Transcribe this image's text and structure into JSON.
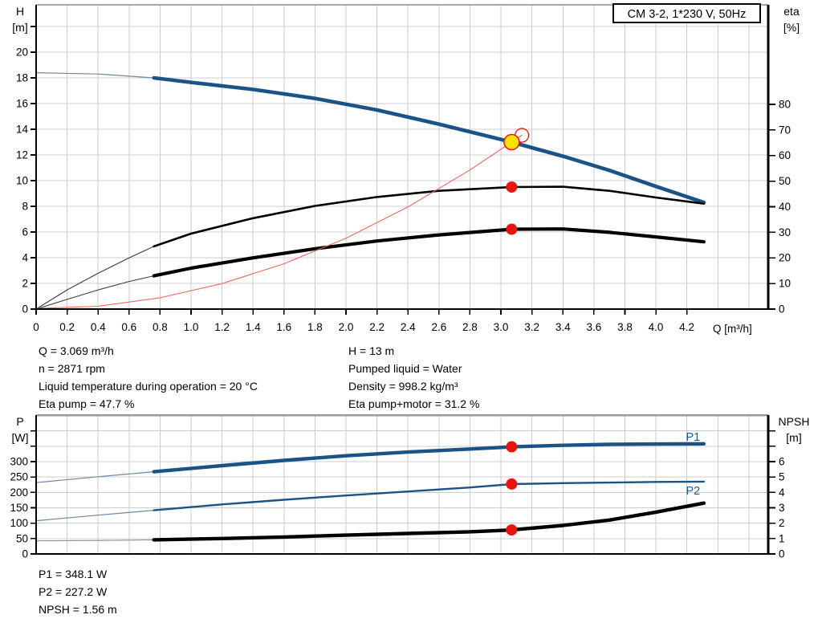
{
  "colors": {
    "blue": "#1b5387",
    "blue_thin": "#7189a6",
    "black": "#000000",
    "dark_thin": "#3c3c3c",
    "gray_thin": "#8f8f8f",
    "red": "#e8150f",
    "red_curve": "#f3655c",
    "yellow": "#ffe105",
    "grid": "#cccccc",
    "frame_light": "#a6a6a6",
    "frame_dark": "#9a9a9a",
    "label_blue": "#1d5c94"
  },
  "annotations": {
    "left": [
      "Q = 3.069 m³/h",
      "n = 2871 rpm",
      "Liquid temperature during operation = 20 °C",
      "Eta pump = 47.7 %"
    ],
    "right": [
      "H = 13 m",
      "Pumped liquid = Water",
      "Density = 998.2 kg/m³",
      "Eta pump+motor = 31.2 %"
    ],
    "bottom": [
      "P1 = 348.1 W",
      "P2 = 227.2 W",
      "NPSH = 1.56 m"
    ]
  },
  "chart_data": [
    {
      "type": "line",
      "title": "CM 3-2, 1*230 V, 50Hz",
      "x_axis": {
        "label": "Q [m³/h]",
        "lim": [
          0,
          4.725
        ],
        "grid": [
          0.2,
          0.4,
          0.6,
          0.8,
          1.0,
          1.2,
          1.4,
          1.6,
          1.8,
          2.0,
          2.2,
          2.4,
          2.6,
          2.8,
          3.0,
          3.2,
          3.4,
          3.6,
          3.8,
          4.0,
          4.2,
          4.4,
          4.6
        ],
        "ticks": [
          [
            0,
            "0"
          ],
          [
            0.2,
            "0.2"
          ],
          [
            0.4,
            "0.4"
          ],
          [
            0.6,
            "0.6"
          ],
          [
            0.8,
            "0.8"
          ],
          [
            1.0,
            "1.0"
          ],
          [
            1.2,
            "1.2"
          ],
          [
            1.4,
            "1.4"
          ],
          [
            1.6,
            "1.6"
          ],
          [
            1.8,
            "1.8"
          ],
          [
            2.0,
            "2.0"
          ],
          [
            2.2,
            "2.2"
          ],
          [
            2.4,
            "2.4"
          ],
          [
            2.6,
            "2.6"
          ],
          [
            2.8,
            "2.8"
          ],
          [
            3.0,
            "3.0"
          ],
          [
            3.2,
            "3.2"
          ],
          [
            3.4,
            "3.4"
          ],
          [
            3.6,
            "3.6"
          ],
          [
            3.8,
            "3.8"
          ],
          [
            4.0,
            "4.0"
          ],
          [
            4.2,
            "4.2"
          ]
        ]
      },
      "left_axis": {
        "label": "H",
        "unit": "[m]",
        "lim": [
          0,
          23.69
        ],
        "grid": [
          2,
          4,
          6,
          8,
          10,
          12,
          14,
          16,
          18,
          20,
          22
        ],
        "ticks": [
          [
            0,
            "0"
          ],
          [
            2,
            "2"
          ],
          [
            4,
            "4"
          ],
          [
            6,
            "6"
          ],
          [
            8,
            "8"
          ],
          [
            10,
            "10"
          ],
          [
            12,
            "12"
          ],
          [
            14,
            "14"
          ],
          [
            16,
            "16"
          ],
          [
            18,
            "18"
          ],
          [
            20,
            "20"
          ],
          [
            22,
            ""
          ]
        ]
      },
      "right_axis": {
        "label": "eta",
        "unit": "[%]",
        "lim": [
          0,
          118.9
        ],
        "ticks": [
          [
            0,
            "0"
          ],
          [
            10,
            "10"
          ],
          [
            20,
            "20"
          ],
          [
            30,
            "30"
          ],
          [
            40,
            "40"
          ],
          [
            50,
            "50"
          ],
          [
            60,
            "60"
          ],
          [
            70,
            "70"
          ],
          [
            80,
            "80"
          ]
        ]
      },
      "frame_top": "light",
      "series": [
        {
          "name": "head-curve",
          "axis": "left",
          "color": "blue",
          "thin_color": "blue_thin",
          "w_thin": 1.2,
          "w_thick": 4.6,
          "thick_from": 0.76,
          "points": [
            [
              0,
              18.4
            ],
            [
              0.4,
              18.3
            ],
            [
              0.76,
              18.0
            ],
            [
              1.0,
              17.65
            ],
            [
              1.4,
              17.1
            ],
            [
              1.8,
              16.4
            ],
            [
              2.2,
              15.5
            ],
            [
              2.6,
              14.4
            ],
            [
              3.069,
              13.0
            ],
            [
              3.4,
              11.9
            ],
            [
              3.7,
              10.8
            ],
            [
              4.0,
              9.55
            ],
            [
              4.31,
              8.3
            ]
          ]
        },
        {
          "name": "eta-pump-curve",
          "axis": "right",
          "color": "black",
          "thin_color": "dark_thin",
          "w_thin": 1.1,
          "w_thick": 2.6,
          "thick_from": 0.76,
          "points": [
            [
              0,
              0
            ],
            [
              0.2,
              7.5
            ],
            [
              0.4,
              14
            ],
            [
              0.6,
              20
            ],
            [
              0.76,
              24.5
            ],
            [
              1.0,
              29.5
            ],
            [
              1.4,
              35.5
            ],
            [
              1.8,
              40.3
            ],
            [
              2.2,
              43.8
            ],
            [
              2.6,
              46.2
            ],
            [
              3.069,
              47.7
            ],
            [
              3.4,
              47.8
            ],
            [
              3.7,
              46.2
            ],
            [
              4.0,
              43.6
            ],
            [
              4.31,
              41.2
            ]
          ]
        },
        {
          "name": "eta-pump-motor-curve",
          "axis": "right",
          "color": "black",
          "thin_color": "dark_thin",
          "w_thin": 1.1,
          "w_thick": 4.2,
          "thick_from": 0.76,
          "points": [
            [
              0,
              0
            ],
            [
              0.2,
              3.8
            ],
            [
              0.4,
              7.5
            ],
            [
              0.6,
              10.8
            ],
            [
              0.76,
              13.0
            ],
            [
              1.0,
              16.0
            ],
            [
              1.4,
              20.0
            ],
            [
              1.8,
              23.6
            ],
            [
              2.2,
              26.6
            ],
            [
              2.6,
              29.0
            ],
            [
              3.069,
              31.2
            ],
            [
              3.4,
              31.3
            ],
            [
              3.7,
              30.0
            ],
            [
              4.0,
              28.2
            ],
            [
              4.31,
              26.3
            ]
          ]
        },
        {
          "name": "system-curve",
          "axis": "left",
          "color": "red_curve",
          "w_thin": 1.1,
          "points": [
            [
              0,
              0.05
            ],
            [
              0.4,
              0.22
            ],
            [
              0.8,
              0.88
            ],
            [
              1.2,
              1.99
            ],
            [
              1.6,
              3.53
            ],
            [
              2.0,
              5.52
            ],
            [
              2.4,
              7.95
            ],
            [
              2.8,
              10.83
            ],
            [
              3.069,
              13.0
            ],
            [
              3.135,
              13.53
            ]
          ]
        }
      ],
      "markers": [
        {
          "name": "requested-duty-point",
          "shape": "ring",
          "axis": "left",
          "q": 3.135,
          "v": 13.53,
          "r": 8.5,
          "stroke": "red"
        },
        {
          "name": "duty-point",
          "shape": "dot",
          "axis": "left",
          "q": 3.069,
          "v": 13.0,
          "r": 9.5,
          "fill": "yellow",
          "stroke": "red"
        },
        {
          "name": "eta-pump-duty-point",
          "shape": "dot",
          "axis": "right",
          "q": 3.069,
          "v": 47.7,
          "r": 7,
          "fill": "red"
        },
        {
          "name": "eta-pump-motor-duty-point",
          "shape": "dot",
          "axis": "right",
          "q": 3.069,
          "v": 31.2,
          "r": 7,
          "fill": "red"
        }
      ],
      "series_labels": []
    },
    {
      "type": "line",
      "title": "",
      "x_axis": {
        "label": "",
        "lim": [
          0,
          4.725
        ],
        "grid": [
          0.2,
          0.4,
          0.6,
          0.8,
          1.0,
          1.2,
          1.4,
          1.6,
          1.8,
          2.0,
          2.2,
          2.4,
          2.6,
          2.8,
          3.0,
          3.2,
          3.4,
          3.6,
          3.8,
          4.0,
          4.2,
          4.4,
          4.6
        ],
        "ticks": []
      },
      "left_axis": {
        "label": "P",
        "unit": "[W]",
        "lim": [
          0,
          451.3
        ],
        "grid": [
          50,
          100,
          150,
          200,
          250,
          300,
          350,
          400
        ],
        "ticks": [
          [
            0,
            "0"
          ],
          [
            50,
            "50"
          ],
          [
            100,
            "100"
          ],
          [
            150,
            "150"
          ],
          [
            200,
            "200"
          ],
          [
            250,
            "250"
          ],
          [
            300,
            "300"
          ],
          [
            350,
            ""
          ],
          [
            400,
            ""
          ]
        ]
      },
      "right_axis": {
        "label": "NPSH",
        "unit": "[m]",
        "lim": [
          0,
          9.025
        ],
        "ticks": [
          [
            0,
            "0"
          ],
          [
            1,
            "1"
          ],
          [
            2,
            "2"
          ],
          [
            3,
            "3"
          ],
          [
            4,
            "4"
          ],
          [
            5,
            "5"
          ],
          [
            6,
            "6"
          ],
          [
            7,
            ""
          ],
          [
            8,
            ""
          ]
        ]
      },
      "frame_top": "dark",
      "series": [
        {
          "name": "p1-curve",
          "axis": "left",
          "color": "blue",
          "thin_color": "blue_thin",
          "w_thin": 1.2,
          "w_thick": 4.4,
          "thick_from": 0.76,
          "points": [
            [
              0,
              232
            ],
            [
              0.4,
              251
            ],
            [
              0.76,
              267
            ],
            [
              1.2,
              287
            ],
            [
              1.6,
              304
            ],
            [
              2.0,
              319
            ],
            [
              2.4,
              331
            ],
            [
              2.8,
              341
            ],
            [
              3.069,
              348
            ],
            [
              3.4,
              353
            ],
            [
              3.7,
              356
            ],
            [
              4.0,
              357
            ],
            [
              4.31,
              358
            ]
          ]
        },
        {
          "name": "p2-curve",
          "axis": "left",
          "color": "blue",
          "thin_color": "blue_thin",
          "w_thin": 1.2,
          "w_thick": 2.4,
          "thick_from": 0.76,
          "points": [
            [
              0,
              108
            ],
            [
              0.4,
              126
            ],
            [
              0.76,
              142
            ],
            [
              1.2,
              161
            ],
            [
              1.6,
              176
            ],
            [
              2.0,
              190
            ],
            [
              2.4,
              203
            ],
            [
              2.8,
              216
            ],
            [
              3.069,
              227
            ],
            [
              3.4,
              230
            ],
            [
              3.7,
              232
            ],
            [
              4.0,
              234
            ],
            [
              4.31,
              235
            ]
          ]
        },
        {
          "name": "npsh-curve",
          "axis": "right",
          "color": "black",
          "thin_color": "gray_thin",
          "w_thin": 1.1,
          "w_thick": 4.4,
          "thick_from": 0.76,
          "points": [
            [
              0,
              0.85
            ],
            [
              0.5,
              0.88
            ],
            [
              0.76,
              0.92
            ],
            [
              1.2,
              1.0
            ],
            [
              1.6,
              1.1
            ],
            [
              2.0,
              1.22
            ],
            [
              2.4,
              1.33
            ],
            [
              2.8,
              1.44
            ],
            [
              3.069,
              1.56
            ],
            [
              3.4,
              1.85
            ],
            [
              3.7,
              2.2
            ],
            [
              4.0,
              2.72
            ],
            [
              4.31,
              3.3
            ]
          ]
        }
      ],
      "markers": [
        {
          "name": "p1-duty-point",
          "shape": "dot",
          "axis": "left",
          "q": 3.069,
          "v": 348.1,
          "r": 7,
          "fill": "red"
        },
        {
          "name": "p2-duty-point",
          "shape": "dot",
          "axis": "left",
          "q": 3.069,
          "v": 227.2,
          "r": 7,
          "fill": "red"
        },
        {
          "name": "npsh-duty-point",
          "shape": "dot",
          "axis": "right",
          "q": 3.069,
          "v": 1.56,
          "r": 7,
          "fill": "red"
        }
      ],
      "series_labels": [
        {
          "text": "P1",
          "axis": "left",
          "at": [
            4.24,
            378
          ],
          "color": "label_blue"
        },
        {
          "text": "P2",
          "axis": "left",
          "at": [
            4.24,
            204
          ],
          "color": "label_blue"
        }
      ]
    }
  ]
}
